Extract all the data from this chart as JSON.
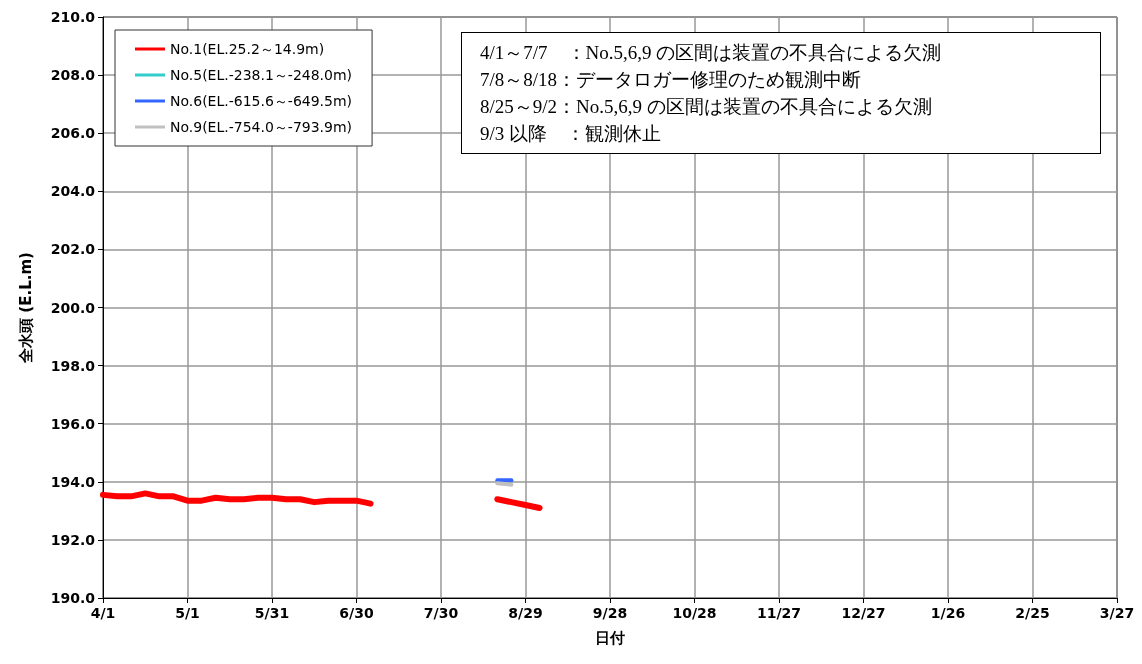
{
  "chart_data": {
    "type": "line",
    "xlabel": "日付",
    "ylabel": "全水頭 (E.L.m)",
    "categories": [
      "4/1",
      null,
      null,
      null,
      null,
      null,
      "5/1",
      null,
      null,
      null,
      null,
      null,
      "5/31",
      null,
      null,
      null,
      null,
      null,
      "6/30",
      null,
      null,
      null,
      null,
      null,
      "7/30",
      null,
      null,
      null,
      null,
      null,
      "8/29",
      null,
      null,
      null,
      null,
      null,
      "9/28",
      null,
      null,
      null,
      null,
      null,
      "10/28",
      null,
      null,
      null,
      null,
      null,
      "11/27",
      null,
      null,
      null,
      null,
      null,
      "12/27",
      null,
      null,
      null,
      null,
      null,
      "1/26",
      null,
      null,
      null,
      null,
      null,
      "2/25",
      null,
      null,
      null,
      null,
      null,
      "3/27"
    ],
    "ylim": [
      190,
      210
    ],
    "yticks": [
      {
        "value": 190,
        "label": "190.0"
      },
      {
        "value": 192,
        "label": "192.0"
      },
      {
        "value": 194,
        "label": "194.0"
      },
      {
        "value": 196,
        "label": "196.0"
      },
      {
        "value": 198,
        "label": "198.0"
      },
      {
        "value": 200,
        "label": "200.0"
      },
      {
        "value": 202,
        "label": "202.0"
      },
      {
        "value": 204,
        "label": "204.0"
      },
      {
        "value": 206,
        "label": "206.0"
      },
      {
        "value": 208,
        "label": "208.0"
      },
      {
        "value": 210,
        "label": "210.0"
      }
    ],
    "grid": true,
    "legend": "top left",
    "marker": "none",
    "line_style": "solid",
    "series": [
      {
        "name": "No.1(EL.25.2～14.9m)",
        "color": "#ff0000",
        "values": [
          193.55,
          193.5,
          193.5,
          193.6,
          193.5,
          193.5,
          193.35,
          193.35,
          193.45,
          193.4,
          193.4,
          193.45,
          193.45,
          193.4,
          193.4,
          193.3,
          193.35,
          193.35,
          193.35,
          193.25,
          null,
          null,
          null,
          null,
          null,
          null,
          null,
          null,
          193.4,
          193.3,
          193.2,
          193.1,
          null,
          null,
          null,
          null,
          null,
          null,
          null,
          null,
          null,
          null,
          null,
          null,
          null,
          null,
          null,
          null,
          null,
          null,
          null,
          null,
          null,
          null,
          null,
          null,
          null,
          null,
          null,
          null,
          null,
          null,
          null,
          null,
          null,
          null,
          null,
          null,
          null,
          null,
          null,
          null,
          null
        ]
      },
      {
        "name": "No.5(EL.-238.1～-248.0m)",
        "color": "#33cccc",
        "values": [
          null,
          null,
          null,
          null,
          null,
          null,
          null,
          null,
          null,
          null,
          null,
          null,
          null,
          null,
          null,
          null,
          null,
          null,
          null,
          null,
          null,
          null,
          null,
          null,
          null,
          null,
          null,
          null,
          null,
          null,
          null,
          null,
          null,
          null,
          null,
          null,
          null,
          null,
          null,
          null,
          null,
          null,
          null,
          null,
          null,
          null,
          null,
          null,
          null,
          null,
          null,
          null,
          null,
          null,
          null,
          null,
          null,
          null,
          null,
          null,
          null,
          null,
          null,
          null,
          null,
          null,
          null,
          null,
          null,
          null,
          null,
          null,
          null
        ]
      },
      {
        "name": "No.6(EL.-615.6～-649.5m)",
        "color": "#3366ff",
        "values": [
          null,
          null,
          null,
          null,
          null,
          null,
          null,
          null,
          null,
          null,
          null,
          null,
          null,
          null,
          null,
          null,
          null,
          null,
          null,
          null,
          null,
          null,
          null,
          null,
          null,
          null,
          null,
          null,
          194.05,
          194.05,
          null,
          null,
          null,
          null,
          null,
          null,
          null,
          null,
          null,
          null,
          null,
          null,
          null,
          null,
          null,
          null,
          null,
          null,
          null,
          null,
          null,
          null,
          null,
          null,
          null,
          null,
          null,
          null,
          null,
          null,
          null,
          null,
          null,
          null,
          null,
          null,
          null,
          null,
          null,
          null,
          null,
          null,
          null
        ]
      },
      {
        "name": "No.9(EL.-754.0～-793.9m)",
        "color": "#c0c0c0",
        "values": [
          null,
          null,
          null,
          null,
          null,
          null,
          null,
          null,
          null,
          null,
          null,
          null,
          null,
          null,
          null,
          null,
          null,
          null,
          null,
          null,
          null,
          null,
          null,
          null,
          null,
          null,
          null,
          null,
          193.95,
          193.9,
          null,
          null,
          null,
          null,
          null,
          null,
          null,
          null,
          null,
          null,
          null,
          null,
          null,
          null,
          null,
          null,
          null,
          null,
          null,
          null,
          null,
          null,
          null,
          null,
          null,
          null,
          null,
          null,
          null,
          null,
          null,
          null,
          null,
          null,
          null,
          null,
          null,
          null,
          null,
          null,
          null,
          null,
          null
        ]
      }
    ],
    "annotations": [
      "4/1～7/7　：No.5,6,9 の区間は装置の不具合による欠測",
      "7/8～8/18：データロガー修理のため観測中断",
      "8/25～9/2：No.5,6,9 の区間は装置の不具合による欠測",
      "9/3 以降　：観測休止"
    ]
  }
}
